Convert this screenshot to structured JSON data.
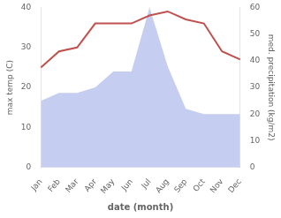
{
  "chart_data": {
    "type": "line",
    "categories": [
      "Jan",
      "Feb",
      "Mar",
      "Apr",
      "May",
      "Jun",
      "Jul",
      "Aug",
      "Sep",
      "Oct",
      "Nov",
      "Dec"
    ],
    "xlabel": "date (month)",
    "ylabel": "max temp (C)",
    "y2label": "med. precipitation (kg/m2)",
    "series": [
      {
        "type": "area",
        "axis": "y2",
        "color": "#c5cef0",
        "values": [
          25,
          28,
          28,
          30,
          36,
          36,
          60,
          38,
          22,
          20,
          20,
          20
        ]
      },
      {
        "type": "line",
        "color": "#c0504d",
        "values": [
          25,
          29,
          30,
          36,
          36,
          36,
          38,
          39,
          37,
          36,
          29,
          27
        ]
      }
    ],
    "ylim": [
      0,
      40
    ],
    "yticks": [
      0,
      10,
      20,
      30,
      40
    ],
    "y2lim": [
      0,
      60
    ],
    "y2ticks": [
      0,
      10,
      20,
      30,
      40,
      50,
      60
    ],
    "grid": false
  }
}
